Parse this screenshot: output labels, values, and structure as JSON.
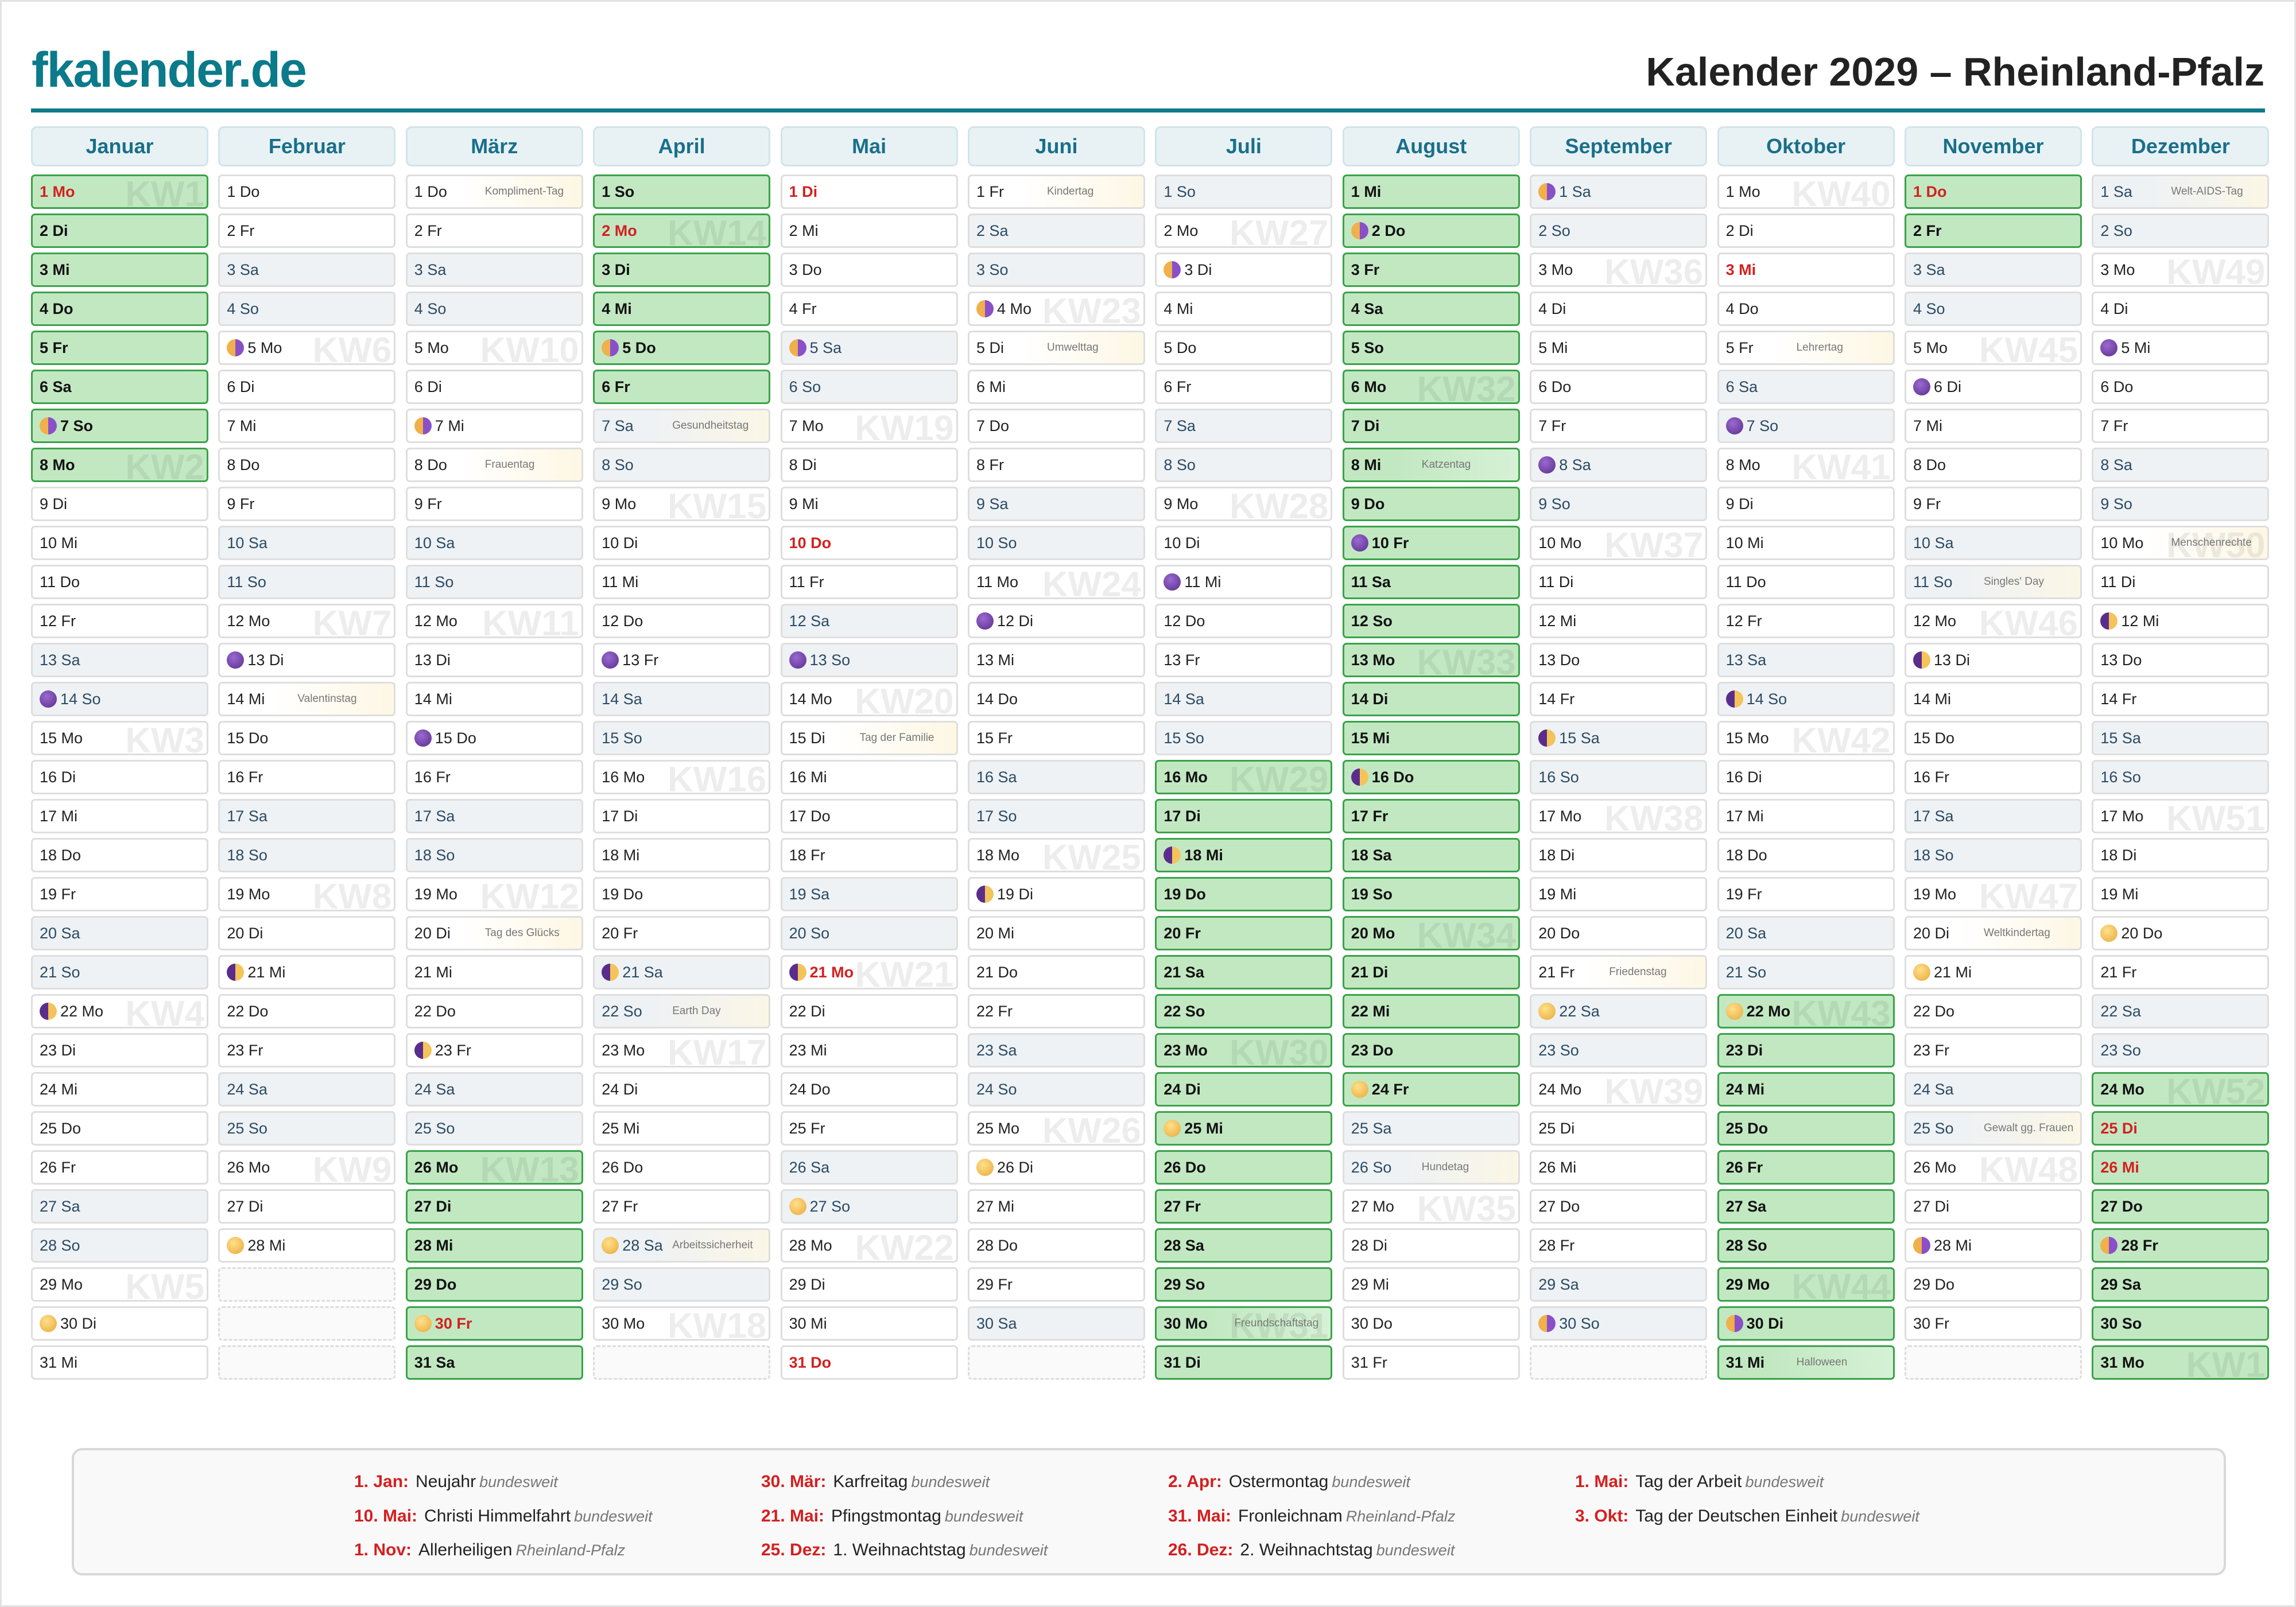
{
  "header": {
    "logo": "fkalender.de",
    "title": "Kalender 2029 – Rheinland-Pfalz"
  },
  "weekdays": [
    "Mo",
    "Di",
    "Mi",
    "Do",
    "Fr",
    "Sa",
    "So"
  ],
  "colors": {
    "accent": "#0b7a8a",
    "holiday": "#d42020",
    "school": "#c2e8c2"
  },
  "months": [
    {
      "name": "Januar",
      "start": 0,
      "len": 31,
      "school": [
        [
          1,
          8
        ]
      ],
      "holidays": [
        1
      ],
      "moons": {
        "7": "last",
        "14": "new",
        "22": "first",
        "30": "full"
      },
      "kw": {
        "1": "KW1",
        "8": "KW2",
        "15": "KW3",
        "22": "KW4",
        "29": "KW5"
      },
      "notes": {}
    },
    {
      "name": "Februar",
      "start": 3,
      "len": 28,
      "school": [],
      "holidays": [],
      "moons": {
        "5": "last",
        "13": "new",
        "21": "first",
        "28": "full"
      },
      "kw": {
        "5": "KW6",
        "12": "KW7",
        "19": "KW8",
        "26": "KW9"
      },
      "notes": {
        "14": "Valentinstag"
      }
    },
    {
      "name": "März",
      "start": 3,
      "len": 31,
      "school": [
        [
          26,
          31
        ]
      ],
      "holidays": [
        30
      ],
      "moons": {
        "7": "last",
        "15": "new",
        "23": "first",
        "30": "full"
      },
      "kw": {
        "5": "KW10",
        "12": "KW11",
        "19": "KW12",
        "26": "KW13"
      },
      "notes": {
        "1": "Kompliment-Tag",
        "8": "Frauentag",
        "20": "Tag des Glücks"
      }
    },
    {
      "name": "April",
      "start": 6,
      "len": 30,
      "school": [
        [
          1,
          6
        ]
      ],
      "holidays": [
        2
      ],
      "moons": {
        "5": "last",
        "13": "new",
        "21": "first",
        "28": "full"
      },
      "kw": {
        "2": "KW14",
        "9": "KW15",
        "16": "KW16",
        "23": "KW17",
        "30": "KW18"
      },
      "notes": {
        "7": "Gesundheitstag",
        "22": "Earth Day",
        "28": "Arbeitssicherheit"
      }
    },
    {
      "name": "Mai",
      "start": 1,
      "len": 31,
      "school": [],
      "holidays": [
        1,
        10,
        21,
        31
      ],
      "moons": {
        "5": "last",
        "13": "new",
        "21": "first",
        "27": "full"
      },
      "kw": {
        "7": "KW19",
        "14": "KW20",
        "21": "KW21",
        "28": "KW22"
      },
      "notes": {
        "15": "Tag der Familie"
      }
    },
    {
      "name": "Juni",
      "start": 4,
      "len": 30,
      "school": [],
      "holidays": [],
      "moons": {
        "4": "last",
        "12": "new",
        "19": "first",
        "26": "full"
      },
      "kw": {
        "4": "KW23",
        "11": "KW24",
        "18": "KW25",
        "25": "KW26"
      },
      "notes": {
        "1": "Kindertag",
        "5": "Umwelttag"
      }
    },
    {
      "name": "Juli",
      "start": 6,
      "len": 31,
      "school": [
        [
          16,
          31
        ]
      ],
      "holidays": [],
      "moons": {
        "3": "last",
        "11": "new",
        "18": "first",
        "25": "full"
      },
      "kw": {
        "2": "KW27",
        "9": "KW28",
        "16": "KW29",
        "23": "KW30",
        "30": "KW31"
      },
      "notes": {
        "30": "Freundschaftstag"
      }
    },
    {
      "name": "August",
      "start": 2,
      "len": 31,
      "school": [
        [
          1,
          24
        ]
      ],
      "holidays": [],
      "moons": {
        "2": "last",
        "10": "new",
        "16": "first",
        "24": "full"
      },
      "kw": {
        "6": "KW32",
        "13": "KW33",
        "20": "KW34",
        "27": "KW35"
      },
      "notes": {
        "8": "Katzentag",
        "26": "Hundetag"
      }
    },
    {
      "name": "September",
      "start": 5,
      "len": 30,
      "school": [],
      "holidays": [],
      "moons": {
        "1": "last",
        "8": "new",
        "15": "first",
        "22": "full",
        "30": "last"
      },
      "kw": {
        "3": "KW36",
        "10": "KW37",
        "17": "KW38",
        "24": "KW39"
      },
      "notes": {
        "21": "Friedenstag"
      }
    },
    {
      "name": "Oktober",
      "start": 0,
      "len": 31,
      "school": [
        [
          22,
          31
        ]
      ],
      "holidays": [
        3
      ],
      "moons": {
        "7": "new",
        "14": "first",
        "22": "full",
        "30": "last"
      },
      "kw": {
        "1": "KW40",
        "8": "KW41",
        "15": "KW42",
        "22": "KW43",
        "29": "KW44"
      },
      "notes": {
        "5": "Lehrertag",
        "31": "Halloween"
      }
    },
    {
      "name": "November",
      "start": 3,
      "len": 30,
      "school": [
        [
          1,
          2
        ]
      ],
      "holidays": [
        1
      ],
      "moons": {
        "6": "new",
        "13": "first",
        "21": "full",
        "28": "last"
      },
      "kw": {
        "5": "KW45",
        "12": "KW46",
        "19": "KW47",
        "26": "KW48"
      },
      "notes": {
        "11": "Singles' Day",
        "20": "Weltkindertag",
        "25": "Gewalt gg. Frauen"
      }
    },
    {
      "name": "Dezember",
      "start": 5,
      "len": 31,
      "school": [
        [
          24,
          31
        ]
      ],
      "holidays": [
        25,
        26
      ],
      "moons": {
        "5": "new",
        "12": "first",
        "20": "full",
        "28": "last"
      },
      "kw": {
        "3": "KW49",
        "10": "KW50",
        "17": "KW51",
        "24": "KW52",
        "31": "KW1"
      },
      "notes": {
        "1": "Welt-AIDS-Tag",
        "10": "Menschenrechte"
      }
    }
  ],
  "legend": [
    {
      "date": "1. Jan:",
      "name": "Neujahr",
      "scope": "bundesweit"
    },
    {
      "date": "30. Mär:",
      "name": "Karfreitag",
      "scope": "bundesweit"
    },
    {
      "date": "2. Apr:",
      "name": "Ostermontag",
      "scope": "bundesweit"
    },
    {
      "date": "1. Mai:",
      "name": "Tag der Arbeit",
      "scope": "bundesweit"
    },
    {
      "date": "10. Mai:",
      "name": "Christi Himmelfahrt",
      "scope": "bundesweit"
    },
    {
      "date": "21. Mai:",
      "name": "Pfingstmontag",
      "scope": "bundesweit"
    },
    {
      "date": "31. Mai:",
      "name": "Fronleichnam",
      "scope": "Rheinland-Pfalz"
    },
    {
      "date": "3. Okt:",
      "name": "Tag der Deutschen Einheit",
      "scope": "bundesweit"
    },
    {
      "date": "1. Nov:",
      "name": "Allerheiligen",
      "scope": "Rheinland-Pfalz"
    },
    {
      "date": "25. Dez:",
      "name": "1. Weihnachtstag",
      "scope": "bundesweit"
    },
    {
      "date": "26. Dez:",
      "name": "2. Weihnachtstag",
      "scope": "bundesweit"
    }
  ]
}
